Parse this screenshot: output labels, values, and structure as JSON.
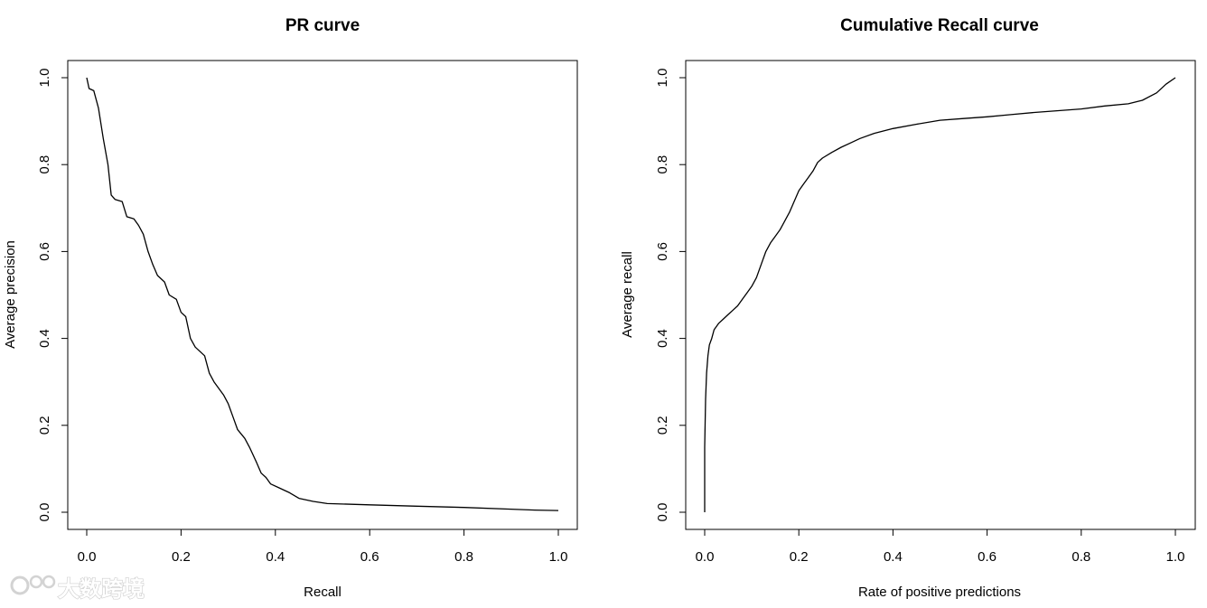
{
  "watermark": {
    "text": "大数跨境"
  },
  "chart_data": [
    {
      "type": "line",
      "title": "PR curve",
      "xlabel": "Recall",
      "ylabel": "Average precision",
      "xlim": [
        0,
        1
      ],
      "ylim": [
        0,
        1
      ],
      "xticks": [
        "0.0",
        "0.2",
        "0.4",
        "0.6",
        "0.8",
        "1.0"
      ],
      "yticks": [
        "0.0",
        "0.2",
        "0.4",
        "0.6",
        "0.8",
        "1.0"
      ],
      "grid": false,
      "series": [
        {
          "points": [
            [
              0.0,
              1.0
            ],
            [
              0.005,
              0.975
            ],
            [
              0.015,
              0.97
            ],
            [
              0.025,
              0.93
            ],
            [
              0.035,
              0.86
            ],
            [
              0.045,
              0.8
            ],
            [
              0.052,
              0.73
            ],
            [
              0.06,
              0.72
            ],
            [
              0.075,
              0.715
            ],
            [
              0.085,
              0.68
            ],
            [
              0.1,
              0.675
            ],
            [
              0.11,
              0.66
            ],
            [
              0.12,
              0.64
            ],
            [
              0.13,
              0.6
            ],
            [
              0.14,
              0.57
            ],
            [
              0.15,
              0.545
            ],
            [
              0.165,
              0.53
            ],
            [
              0.175,
              0.5
            ],
            [
              0.19,
              0.49
            ],
            [
              0.2,
              0.46
            ],
            [
              0.21,
              0.45
            ],
            [
              0.22,
              0.4
            ],
            [
              0.23,
              0.38
            ],
            [
              0.25,
              0.36
            ],
            [
              0.26,
              0.32
            ],
            [
              0.27,
              0.3
            ],
            [
              0.29,
              0.27
            ],
            [
              0.3,
              0.25
            ],
            [
              0.31,
              0.22
            ],
            [
              0.32,
              0.19
            ],
            [
              0.335,
              0.17
            ],
            [
              0.345,
              0.15
            ],
            [
              0.36,
              0.115
            ],
            [
              0.37,
              0.09
            ],
            [
              0.38,
              0.08
            ],
            [
              0.39,
              0.065
            ],
            [
              0.41,
              0.055
            ],
            [
              0.43,
              0.045
            ],
            [
              0.45,
              0.032
            ],
            [
              0.48,
              0.025
            ],
            [
              0.51,
              0.02
            ],
            [
              0.6,
              0.017
            ],
            [
              0.7,
              0.014
            ],
            [
              0.8,
              0.011
            ],
            [
              0.9,
              0.007
            ],
            [
              0.95,
              0.005
            ],
            [
              1.0,
              0.004
            ]
          ]
        }
      ]
    },
    {
      "type": "line",
      "title": "Cumulative Recall curve",
      "xlabel": "Rate of positive predictions",
      "ylabel": "Average recall",
      "xlim": [
        0,
        1
      ],
      "ylim": [
        0,
        1
      ],
      "xticks": [
        "0.0",
        "0.2",
        "0.4",
        "0.6",
        "0.8",
        "1.0"
      ],
      "yticks": [
        "0.0",
        "0.2",
        "0.4",
        "0.6",
        "0.8",
        "1.0"
      ],
      "grid": false,
      "series": [
        {
          "points": [
            [
              0.0,
              0.0
            ],
            [
              0.0,
              0.15
            ],
            [
              0.002,
              0.26
            ],
            [
              0.004,
              0.32
            ],
            [
              0.007,
              0.36
            ],
            [
              0.01,
              0.385
            ],
            [
              0.015,
              0.4
            ],
            [
              0.02,
              0.42
            ],
            [
              0.03,
              0.435
            ],
            [
              0.04,
              0.445
            ],
            [
              0.05,
              0.455
            ],
            [
              0.06,
              0.465
            ],
            [
              0.07,
              0.475
            ],
            [
              0.08,
              0.49
            ],
            [
              0.09,
              0.505
            ],
            [
              0.1,
              0.52
            ],
            [
              0.11,
              0.54
            ],
            [
              0.12,
              0.57
            ],
            [
              0.13,
              0.6
            ],
            [
              0.14,
              0.62
            ],
            [
              0.15,
              0.635
            ],
            [
              0.16,
              0.65
            ],
            [
              0.17,
              0.67
            ],
            [
              0.18,
              0.69
            ],
            [
              0.19,
              0.715
            ],
            [
              0.2,
              0.74
            ],
            [
              0.21,
              0.755
            ],
            [
              0.22,
              0.77
            ],
            [
              0.23,
              0.785
            ],
            [
              0.24,
              0.805
            ],
            [
              0.25,
              0.815
            ],
            [
              0.27,
              0.828
            ],
            [
              0.29,
              0.84
            ],
            [
              0.31,
              0.85
            ],
            [
              0.33,
              0.86
            ],
            [
              0.36,
              0.872
            ],
            [
              0.4,
              0.883
            ],
            [
              0.45,
              0.893
            ],
            [
              0.5,
              0.902
            ],
            [
              0.55,
              0.906
            ],
            [
              0.6,
              0.91
            ],
            [
              0.65,
              0.915
            ],
            [
              0.7,
              0.92
            ],
            [
              0.8,
              0.928
            ],
            [
              0.85,
              0.935
            ],
            [
              0.9,
              0.94
            ],
            [
              0.93,
              0.948
            ],
            [
              0.96,
              0.965
            ],
            [
              0.98,
              0.985
            ],
            [
              1.0,
              1.0
            ]
          ]
        }
      ]
    }
  ]
}
